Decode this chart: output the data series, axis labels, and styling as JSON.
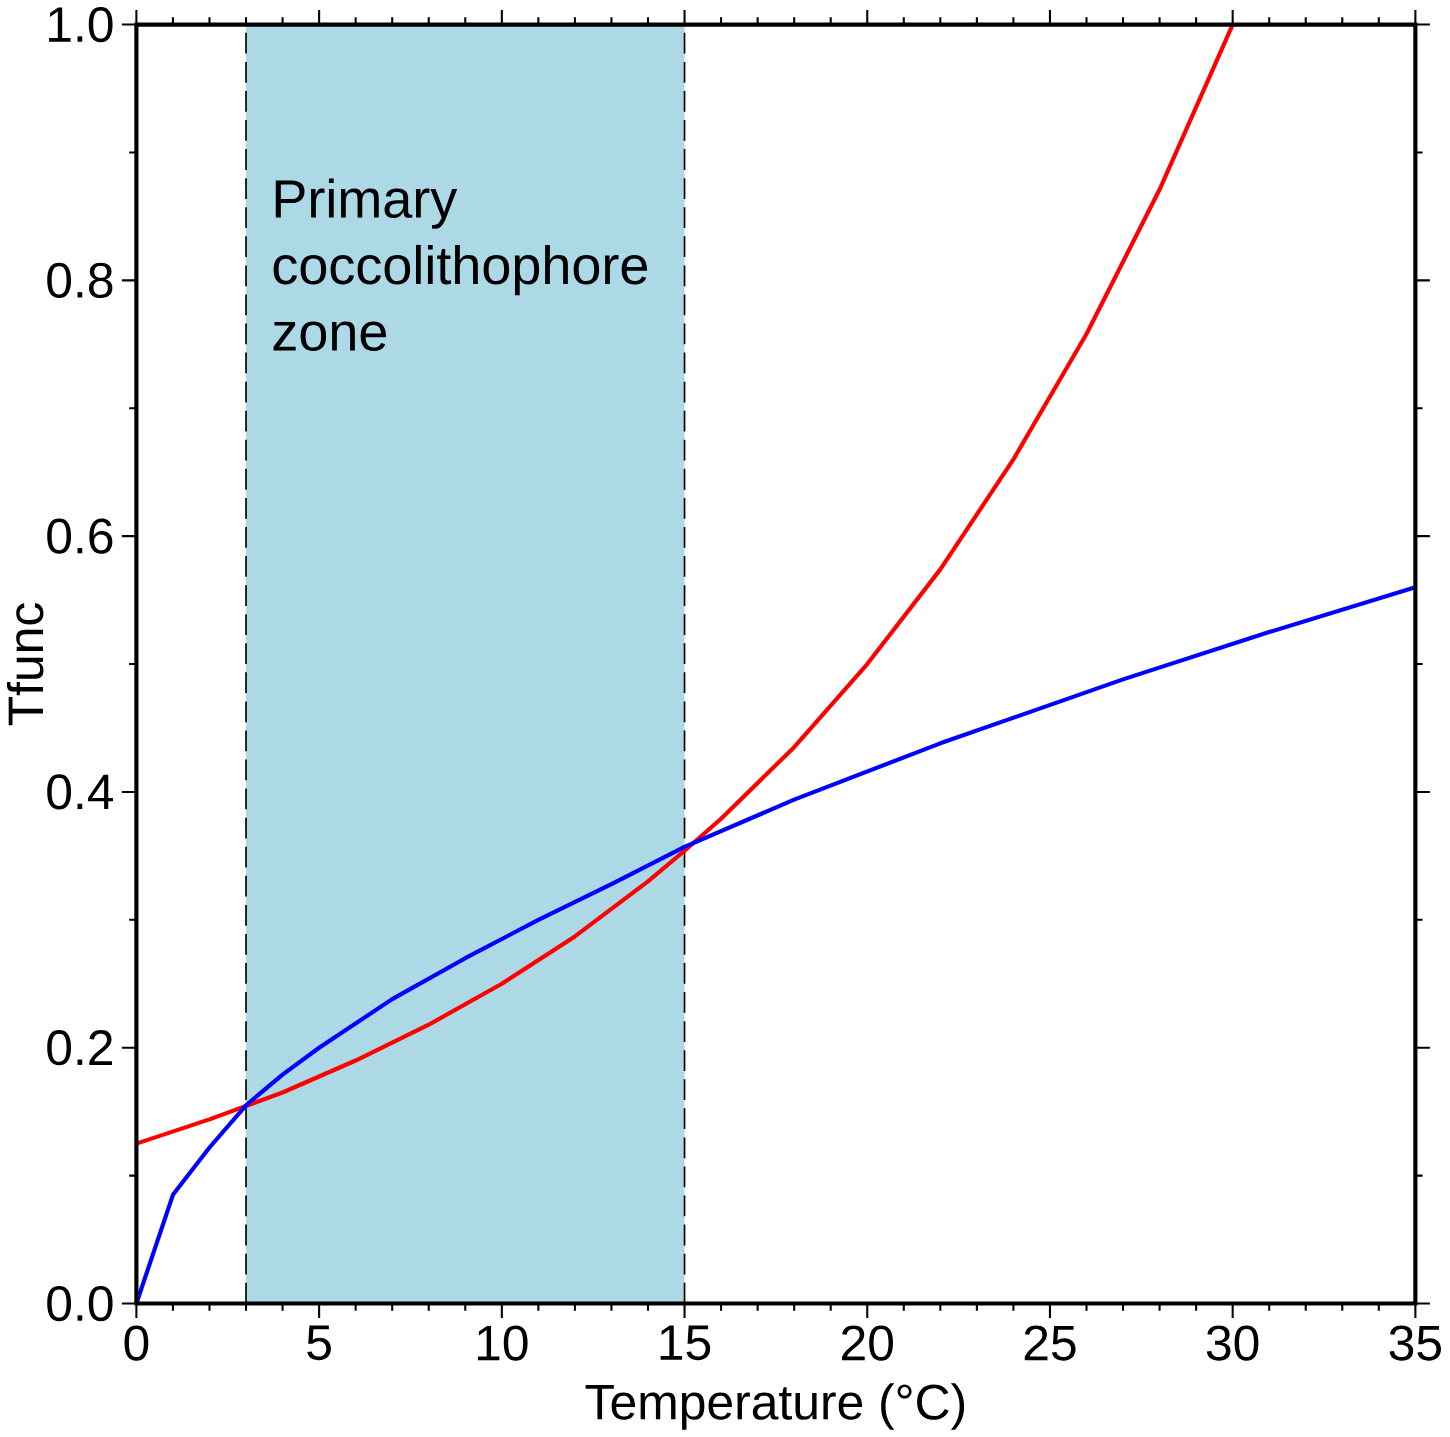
{
  "chart_data": {
    "type": "line",
    "xlabel": "Temperature (°C)",
    "ylabel": "Tfunc",
    "xlim": [
      0,
      35
    ],
    "ylim": [
      0,
      1
    ],
    "xticks": [
      0,
      5,
      10,
      15,
      20,
      25,
      30,
      35
    ],
    "yticks": [
      {
        "value": 0,
        "label": "0.0"
      },
      {
        "value": 0.2,
        "label": "0.2"
      },
      {
        "value": 0.4,
        "label": "0.4"
      },
      {
        "value": 0.6,
        "label": "0.6"
      },
      {
        "value": 0.8,
        "label": "0.8"
      },
      {
        "value": 1,
        "label": "1.0"
      }
    ],
    "bands": [
      {
        "axis": "x",
        "from": 3,
        "to": 15,
        "label": "Primary coccolithophore zone",
        "color": "#add8e6"
      }
    ],
    "series": [
      {
        "color": "#ff0000",
        "x": [
          0,
          2,
          4,
          6,
          8,
          10,
          12,
          14,
          15,
          16,
          18,
          20,
          22,
          24,
          26,
          28,
          30
        ],
        "values": [
          0.125,
          0.144,
          0.165,
          0.19,
          0.218,
          0.25,
          0.287,
          0.33,
          0.354,
          0.379,
          0.435,
          0.5,
          0.574,
          0.66,
          0.758,
          0.871,
          1.0
        ]
      },
      {
        "color": "#0000ff",
        "x": [
          0,
          1,
          2,
          3,
          4,
          5,
          7,
          9,
          11,
          13,
          15,
          18,
          22,
          27,
          31,
          35
        ],
        "values": [
          0,
          0.085,
          0.122,
          0.155,
          0.179,
          0.2,
          0.238,
          0.27,
          0.3,
          0.328,
          0.357,
          0.394,
          0.438,
          0.488,
          0.525,
          0.56
        ]
      }
    ],
    "marker": "none",
    "line_style": "solid"
  }
}
